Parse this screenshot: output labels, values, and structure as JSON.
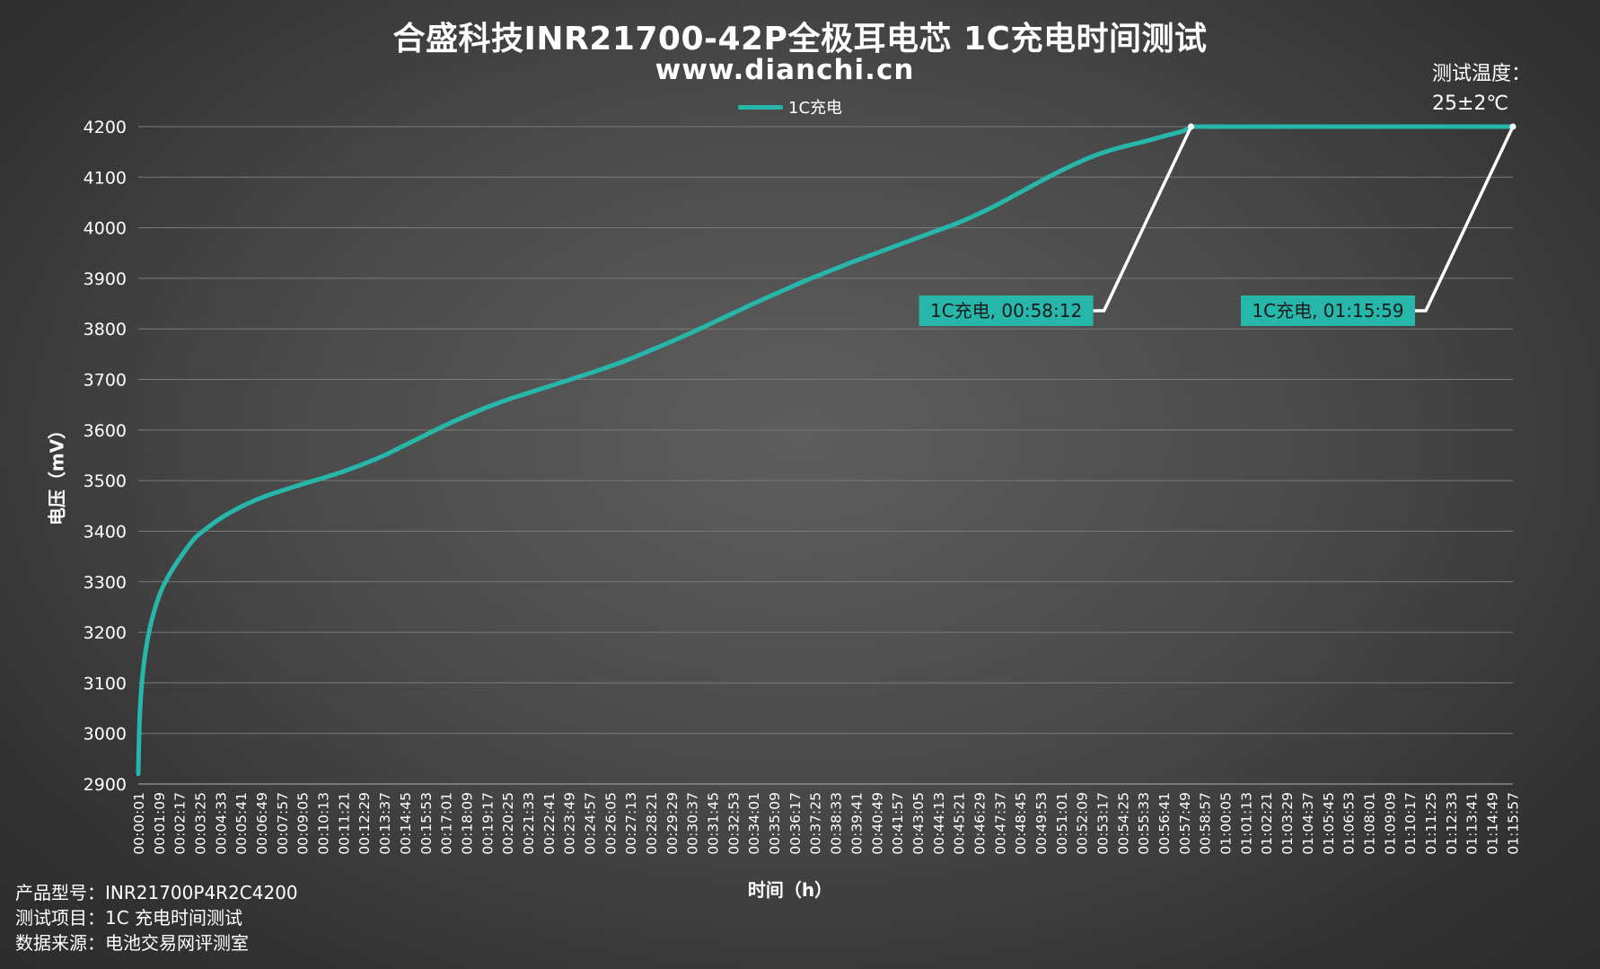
{
  "chart_data": {
    "type": "line",
    "title": "合盛科技INR21700-42P全极耳电芯 1C充电时间测试",
    "subtitle": "www.dianchi.cn",
    "xlabel": "时间（h）",
    "ylabel": "电压（mV）",
    "ylim": [
      2900,
      4200
    ],
    "yticks": [
      2900,
      3000,
      3100,
      3200,
      3300,
      3400,
      3500,
      3600,
      3700,
      3800,
      3900,
      4000,
      4100,
      4200
    ],
    "xlim": [
      "00:00:01",
      "01:15:59"
    ],
    "xticks": [
      "00:00:01",
      "00:01:09",
      "00:02:17",
      "00:03:25",
      "00:04:33",
      "00:05:41",
      "00:06:49",
      "00:07:57",
      "00:09:05",
      "00:10:13",
      "00:11:21",
      "00:12:29",
      "00:13:37",
      "00:14:45",
      "00:15:53",
      "00:17:01",
      "00:18:09",
      "00:19:17",
      "00:20:25",
      "00:21:33",
      "00:22:41",
      "00:23:49",
      "00:24:57",
      "00:26:05",
      "00:27:13",
      "00:28:21",
      "00:29:29",
      "00:30:37",
      "00:31:45",
      "00:32:53",
      "00:34:01",
      "00:35:09",
      "00:36:17",
      "00:37:25",
      "00:38:33",
      "00:39:41",
      "00:40:49",
      "00:41:57",
      "00:43:05",
      "00:44:13",
      "00:45:21",
      "00:46:29",
      "00:47:37",
      "00:48:45",
      "00:49:53",
      "00:51:01",
      "00:52:09",
      "00:53:17",
      "00:54:25",
      "00:55:33",
      "00:56:41",
      "00:57:49",
      "00:58:57",
      "01:00:05",
      "01:01:13",
      "01:02:21",
      "01:03:29",
      "01:04:37",
      "01:05:45",
      "01:06:53",
      "01:08:01",
      "01:09:09",
      "01:10:17",
      "01:11:25",
      "01:12:33",
      "01:13:41",
      "01:14:49",
      "01:15:57"
    ],
    "grid": true,
    "legend_position": "top-center",
    "series": [
      {
        "name": "1C充电",
        "color": "#26b7aa",
        "points": [
          [
            "00:00:01",
            2920
          ],
          [
            "00:00:04",
            3000
          ],
          [
            "00:00:08",
            3060
          ],
          [
            "00:00:20",
            3140
          ],
          [
            "00:00:40",
            3210
          ],
          [
            "00:01:09",
            3270
          ],
          [
            "00:01:40",
            3310
          ],
          [
            "00:02:17",
            3345
          ],
          [
            "00:03:00",
            3380
          ],
          [
            "00:03:25",
            3395
          ],
          [
            "00:04:33",
            3425
          ],
          [
            "00:05:41",
            3448
          ],
          [
            "00:06:49",
            3466
          ],
          [
            "00:07:57",
            3480
          ],
          [
            "00:09:05",
            3493
          ],
          [
            "00:10:13",
            3505
          ],
          [
            "00:11:21",
            3518
          ],
          [
            "00:12:29",
            3533
          ],
          [
            "00:13:37",
            3550
          ],
          [
            "00:14:45",
            3570
          ],
          [
            "00:15:53",
            3590
          ],
          [
            "00:17:01",
            3610
          ],
          [
            "00:18:09",
            3628
          ],
          [
            "00:19:17",
            3645
          ],
          [
            "00:20:25",
            3660
          ],
          [
            "00:21:33",
            3673
          ],
          [
            "00:22:41",
            3686
          ],
          [
            "00:23:49",
            3699
          ],
          [
            "00:24:57",
            3712
          ],
          [
            "00:26:05",
            3726
          ],
          [
            "00:27:13",
            3741
          ],
          [
            "00:28:21",
            3758
          ],
          [
            "00:29:29",
            3775
          ],
          [
            "00:30:37",
            3793
          ],
          [
            "00:31:45",
            3812
          ],
          [
            "00:32:53",
            3831
          ],
          [
            "00:34:01",
            3850
          ],
          [
            "00:35:09",
            3868
          ],
          [
            "00:36:17",
            3886
          ],
          [
            "00:37:25",
            3903
          ],
          [
            "00:38:33",
            3919
          ],
          [
            "00:39:41",
            3935
          ],
          [
            "00:40:49",
            3950
          ],
          [
            "00:41:57",
            3965
          ],
          [
            "00:43:05",
            3980
          ],
          [
            "00:44:13",
            3995
          ],
          [
            "00:45:21",
            4010
          ],
          [
            "00:46:29",
            4028
          ],
          [
            "00:47:37",
            4048
          ],
          [
            "00:48:45",
            4070
          ],
          [
            "00:49:53",
            4092
          ],
          [
            "00:51:01",
            4113
          ],
          [
            "00:52:09",
            4132
          ],
          [
            "00:53:17",
            4148
          ],
          [
            "00:54:25",
            4160
          ],
          [
            "00:55:33",
            4170
          ],
          [
            "00:56:41",
            4181
          ],
          [
            "00:57:49",
            4192
          ],
          [
            "00:58:12",
            4200
          ],
          [
            "01:15:59",
            4200
          ]
        ]
      }
    ],
    "annotations": [
      {
        "label": "1C充电, 00:58:12",
        "x": "00:58:12",
        "y": 4200,
        "box_color": "#26b7aa"
      },
      {
        "label": "1C充电, 01:15:59",
        "x": "01:15:59",
        "y": 4200,
        "box_color": "#26b7aa"
      }
    ]
  },
  "test_temperature": {
    "label": "测试温度：",
    "value": "25±2℃"
  },
  "footer": {
    "model": "产品型号：INR21700P4R2C4200",
    "item": "测试项目：1C 充电时间测试",
    "source": "数据来源：电池交易网评测室"
  }
}
